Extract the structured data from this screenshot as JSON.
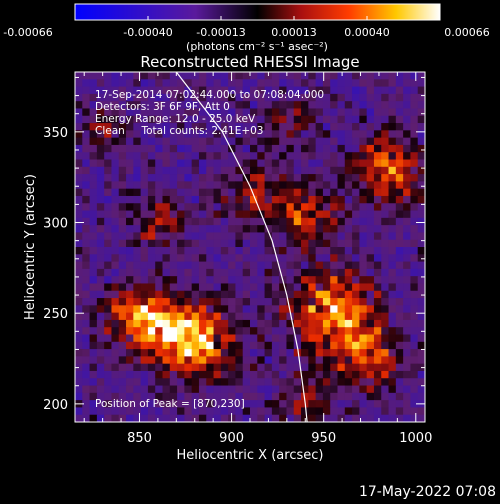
{
  "chart_data": {
    "type": "heatmap",
    "title": "Reconstructed RHESSI Image",
    "xlabel": "Heliocentric X (arcsec)",
    "ylabel": "Heliocentric Y (arcsec)",
    "xlim": [
      815,
      1005
    ],
    "ylim": [
      190,
      383
    ],
    "x_ticks": [
      "850",
      "900",
      "950",
      "1000"
    ],
    "x_tick_values": [
      850,
      900,
      950,
      1000
    ],
    "y_ticks": [
      "200",
      "250",
      "300",
      "350"
    ],
    "y_tick_values": [
      200,
      250,
      300,
      350
    ],
    "colorbar": {
      "range": [
        -0.00066,
        0.00066
      ],
      "ticks": [
        "-0.00066",
        "-0.00040",
        "-0.00013",
        "0.00013",
        "0.00040",
        "0.00066"
      ],
      "units": "(photons cm⁻² s⁻¹ asec⁻²)"
    },
    "annotations": [
      "17-Sep-2014 07:02:44.000 to 07:08:04.000",
      "Detectors: 3F 6F 9F, Att 0",
      "Energy Range: 12.0 - 25.0 keV",
      "Clean     Total counts: 2.41E+03"
    ],
    "peak_label": "Position of Peak = [870,230]",
    "peak": [
      870,
      230
    ],
    "limb_curve": [
      [
        870,
        383
      ],
      [
        895,
        350
      ],
      [
        910,
        320
      ],
      [
        922,
        290
      ],
      [
        930,
        260
      ],
      [
        936,
        230
      ],
      [
        940,
        200
      ],
      [
        941,
        190
      ]
    ],
    "emission_blobs": [
      {
        "x": 880,
        "y": 235,
        "sigma": 14,
        "amp": 1.0
      },
      {
        "x": 860,
        "y": 242,
        "sigma": 12,
        "amp": 0.75
      },
      {
        "x": 845,
        "y": 250,
        "sigma": 10,
        "amp": 0.55
      },
      {
        "x": 955,
        "y": 250,
        "sigma": 16,
        "amp": 0.85
      },
      {
        "x": 975,
        "y": 225,
        "sigma": 12,
        "amp": 0.65
      },
      {
        "x": 985,
        "y": 330,
        "sigma": 12,
        "amp": 0.8
      },
      {
        "x": 940,
        "y": 305,
        "sigma": 12,
        "amp": 0.55
      },
      {
        "x": 910,
        "y": 315,
        "sigma": 12,
        "amp": 0.45
      },
      {
        "x": 860,
        "y": 300,
        "sigma": 10,
        "amp": 0.45
      },
      {
        "x": 930,
        "y": 355,
        "sigma": 9,
        "amp": 0.4
      },
      {
        "x": 830,
        "y": 350,
        "sigma": 9,
        "amp": 0.35
      },
      {
        "x": 940,
        "y": 200,
        "sigma": 9,
        "amp": 0.45
      }
    ]
  },
  "footer": {
    "timestamp": "17-May-2022 07:08"
  }
}
